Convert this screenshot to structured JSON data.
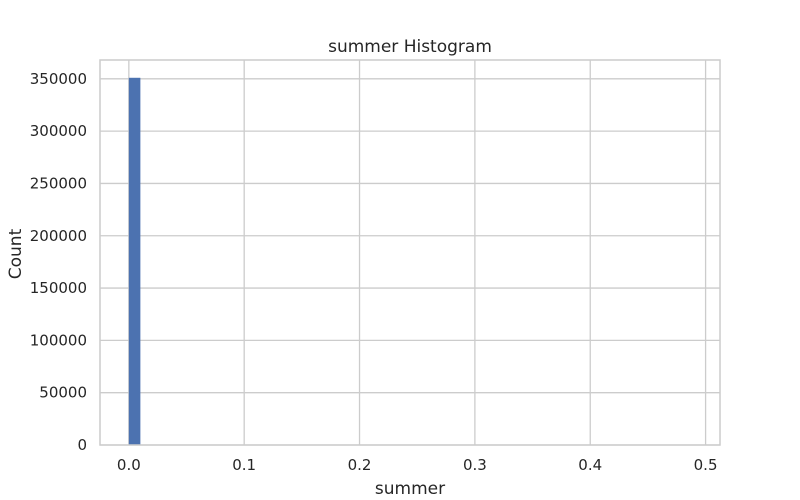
{
  "chart_data": {
    "type": "bar",
    "title": "summer Histogram",
    "xlabel": "summer",
    "ylabel": "Count",
    "xlim": [
      -0.025,
      0.5125
    ],
    "ylim": [
      0,
      368000
    ],
    "xticks": [
      0.0,
      0.1,
      0.2,
      0.3,
      0.4,
      0.5
    ],
    "xtick_labels": [
      "0.0",
      "0.1",
      "0.2",
      "0.3",
      "0.4",
      "0.5"
    ],
    "yticks": [
      0,
      50000,
      100000,
      150000,
      200000,
      250000,
      300000,
      350000
    ],
    "ytick_labels": [
      "0",
      "50000",
      "100000",
      "150000",
      "200000",
      "250000",
      "300000",
      "350000"
    ],
    "grid": true,
    "bins": [
      {
        "x0": 0.0,
        "x1": 0.01,
        "count": 351000
      }
    ],
    "colors": {
      "bar": "#4c72b0",
      "grid": "#cccccc",
      "frame": "#cccccc"
    }
  }
}
